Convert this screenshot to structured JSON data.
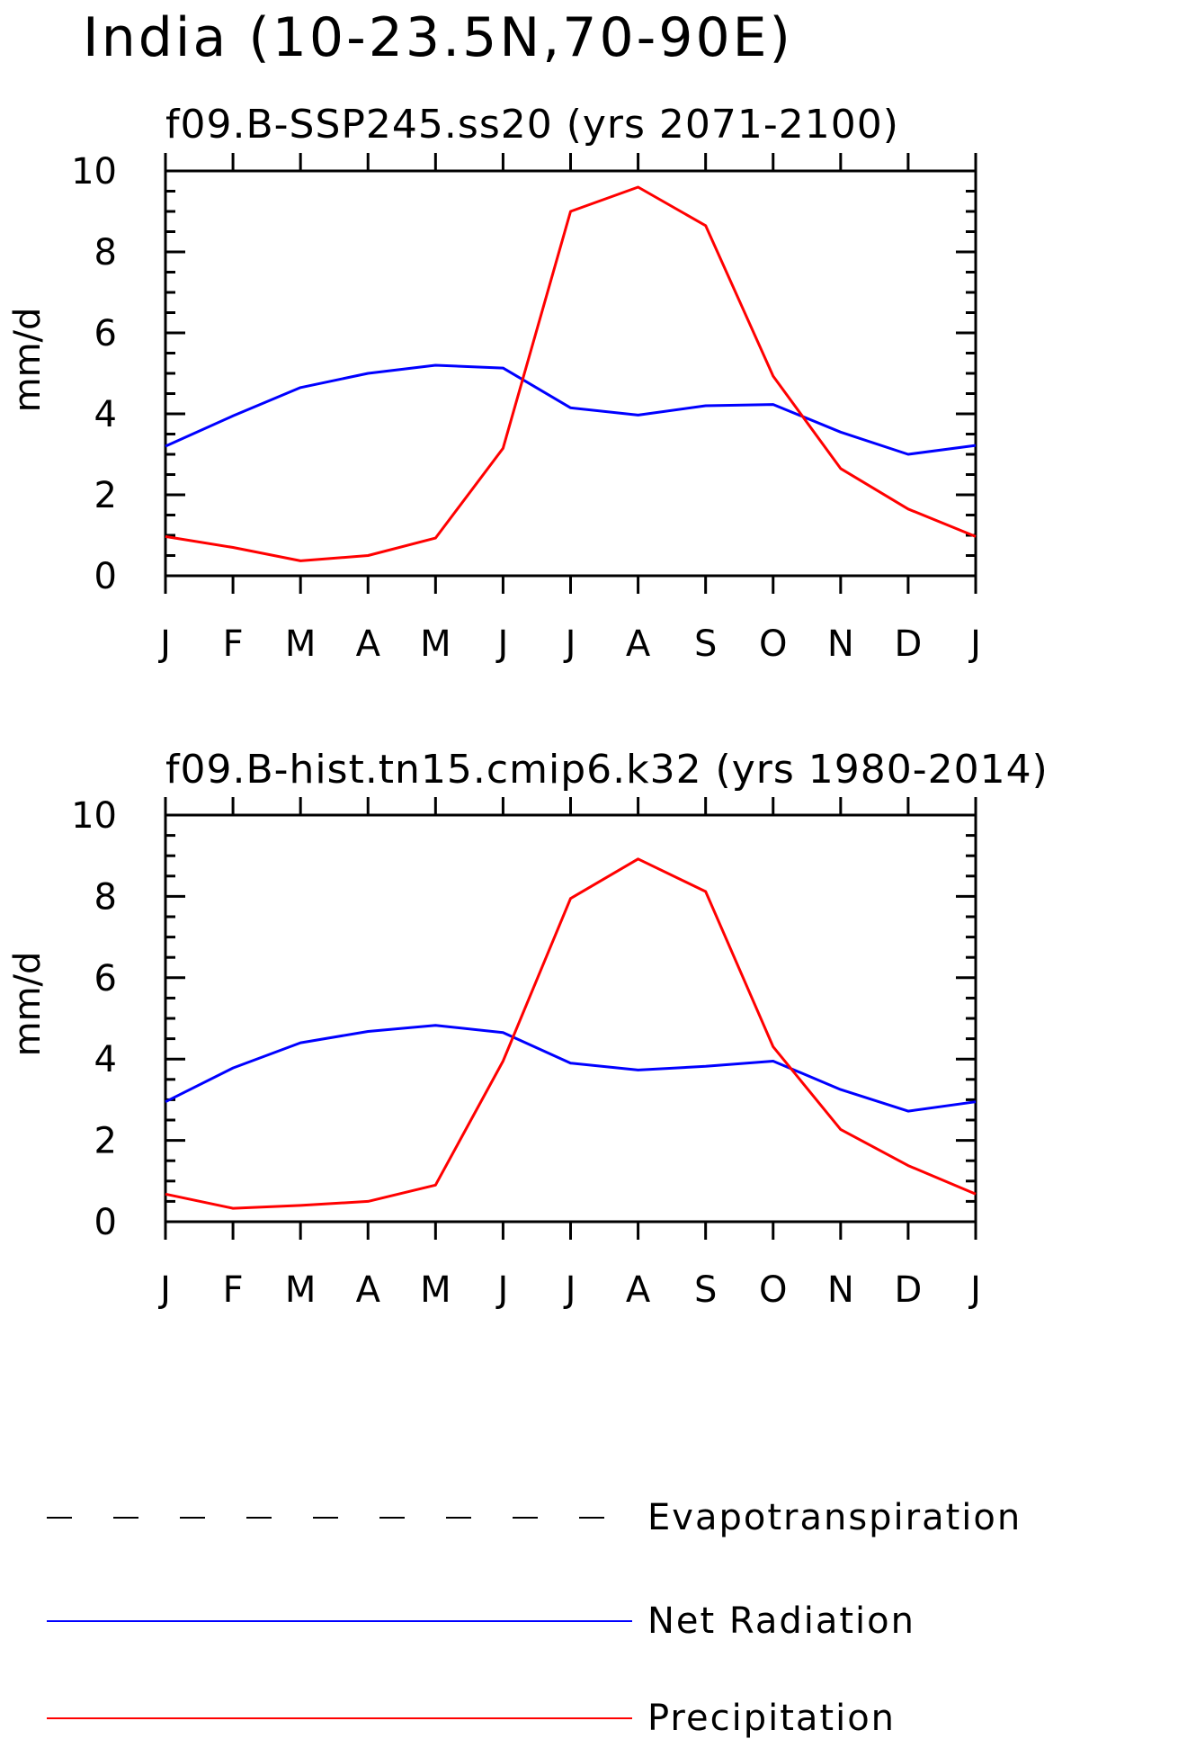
{
  "figure_title": "India (10-23.5N,70-90E)",
  "chart_data": [
    {
      "type": "line",
      "title": "f09.B-SSP245.ss20 (yrs 2071-2100)",
      "ylabel": "mm/d",
      "xlabel": "",
      "categories": [
        "J",
        "F",
        "M",
        "A",
        "M",
        "J",
        "J",
        "A",
        "S",
        "O",
        "N",
        "D",
        "J"
      ],
      "ylim": [
        0,
        10
      ],
      "yticks": [
        "0",
        "2",
        "4",
        "6",
        "8",
        "10"
      ],
      "series": [
        {
          "name": "Net Radiation",
          "color": "#0000ff",
          "values": [
            3.2,
            3.95,
            4.65,
            5.0,
            5.2,
            5.13,
            4.15,
            3.97,
            4.2,
            4.23,
            3.55,
            3.0,
            3.22
          ]
        },
        {
          "name": "Precipitation",
          "color": "#ff0000",
          "values": [
            0.97,
            0.7,
            0.37,
            0.5,
            0.93,
            3.15,
            9.0,
            9.6,
            8.65,
            4.93,
            2.65,
            1.65,
            0.97
          ]
        }
      ]
    },
    {
      "type": "line",
      "title": "f09.B-hist.tn15.cmip6.k32 (yrs 1980-2014)",
      "ylabel": "mm/d",
      "xlabel": "",
      "categories": [
        "J",
        "F",
        "M",
        "A",
        "M",
        "J",
        "J",
        "A",
        "S",
        "O",
        "N",
        "D",
        "J"
      ],
      "ylim": [
        0,
        10
      ],
      "yticks": [
        "0",
        "2",
        "4",
        "6",
        "8",
        "10"
      ],
      "series": [
        {
          "name": "Net Radiation",
          "color": "#0000ff",
          "values": [
            2.95,
            3.78,
            4.4,
            4.68,
            4.83,
            4.65,
            3.9,
            3.73,
            3.82,
            3.95,
            3.25,
            2.72,
            2.95
          ]
        },
        {
          "name": "Precipitation",
          "color": "#ff0000",
          "values": [
            0.68,
            0.33,
            0.4,
            0.5,
            0.9,
            3.95,
            7.95,
            8.92,
            8.12,
            4.3,
            2.27,
            1.38,
            0.68
          ]
        }
      ]
    }
  ],
  "legend": [
    {
      "label": "Evapotranspiration",
      "color": "#000000",
      "style": "dashed"
    },
    {
      "label": "Net Radiation",
      "color": "#0000ff",
      "style": "solid"
    },
    {
      "label": "Precipitation",
      "color": "#ff0000",
      "style": "solid"
    }
  ]
}
